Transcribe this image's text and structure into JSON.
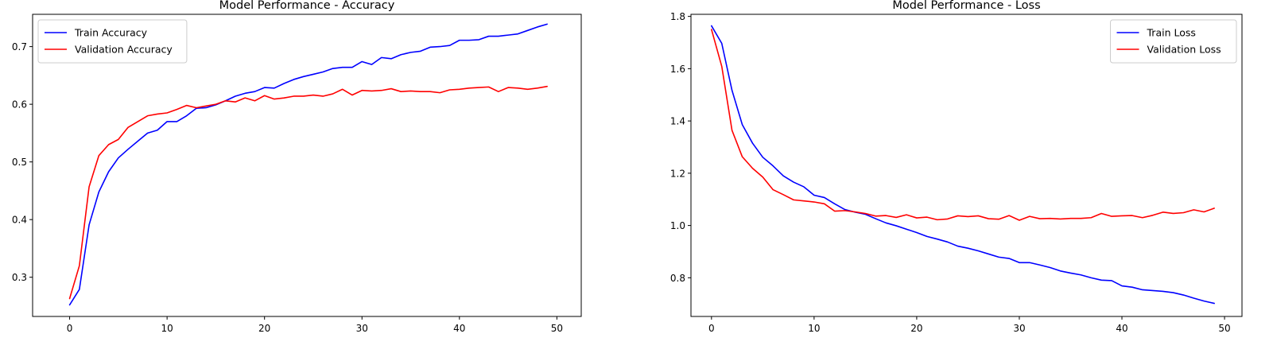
{
  "chart_data": [
    {
      "type": "line",
      "title": "Model Performance - Accuracy",
      "xlabel": "",
      "ylabel": "",
      "xlim": [
        -3.8,
        52.5
      ],
      "ylim": [
        0.232,
        0.756
      ],
      "xticks": [
        0,
        10,
        20,
        30,
        40,
        50
      ],
      "yticks": [
        0.3,
        0.4,
        0.5,
        0.6,
        0.7
      ],
      "ytick_labels": [
        "0.3",
        "0.4",
        "0.5",
        "0.6",
        "0.7"
      ],
      "grid": false,
      "legend_position": "top-left",
      "x": [
        0,
        1,
        2,
        3,
        4,
        5,
        6,
        7,
        8,
        9,
        10,
        11,
        12,
        13,
        14,
        15,
        16,
        17,
        18,
        19,
        20,
        21,
        22,
        23,
        24,
        25,
        26,
        27,
        28,
        29,
        30,
        31,
        32,
        33,
        34,
        35,
        36,
        37,
        38,
        39,
        40,
        41,
        42,
        43,
        44,
        45,
        46,
        47,
        48,
        49
      ],
      "series": [
        {
          "name": "Train Accuracy",
          "color": "#0000ff",
          "values": [
            0.252,
            0.279,
            0.391,
            0.448,
            0.483,
            0.507,
            0.522,
            0.536,
            0.55,
            0.555,
            0.57,
            0.57,
            0.58,
            0.593,
            0.594,
            0.599,
            0.606,
            0.614,
            0.619,
            0.622,
            0.629,
            0.628,
            0.636,
            0.643,
            0.648,
            0.652,
            0.656,
            0.662,
            0.664,
            0.664,
            0.674,
            0.669,
            0.681,
            0.679,
            0.686,
            0.69,
            0.692,
            0.699,
            0.7,
            0.702,
            0.711,
            0.711,
            0.712,
            0.718,
            0.718,
            0.72,
            0.722,
            0.728,
            0.734,
            0.739
          ]
        },
        {
          "name": "Validation Accuracy",
          "color": "#ff0000",
          "values": [
            0.263,
            0.32,
            0.457,
            0.511,
            0.53,
            0.539,
            0.56,
            0.57,
            0.58,
            0.583,
            0.585,
            0.591,
            0.598,
            0.594,
            0.597,
            0.6,
            0.606,
            0.604,
            0.611,
            0.606,
            0.615,
            0.609,
            0.611,
            0.614,
            0.614,
            0.616,
            0.614,
            0.618,
            0.626,
            0.616,
            0.624,
            0.623,
            0.624,
            0.627,
            0.622,
            0.623,
            0.622,
            0.622,
            0.62,
            0.625,
            0.626,
            0.628,
            0.629,
            0.63,
            0.622,
            0.629,
            0.628,
            0.626,
            0.628,
            0.631
          ]
        }
      ]
    },
    {
      "type": "line",
      "title": "Model Performance - Loss",
      "xlabel": "",
      "ylabel": "",
      "xlim": [
        -2.0,
        51.7
      ],
      "ylim": [
        0.652,
        1.808
      ],
      "xticks": [
        0,
        10,
        20,
        30,
        40,
        50
      ],
      "yticks": [
        0.8,
        1.0,
        1.2,
        1.4,
        1.6,
        1.8
      ],
      "ytick_labels": [
        "0.8",
        "1.0",
        "1.2",
        "1.4",
        "1.6",
        "1.8"
      ],
      "grid": false,
      "legend_position": "top-right",
      "x": [
        0,
        1,
        2,
        3,
        4,
        5,
        6,
        7,
        8,
        9,
        10,
        11,
        12,
        13,
        14,
        15,
        16,
        17,
        18,
        19,
        20,
        21,
        22,
        23,
        24,
        25,
        26,
        27,
        28,
        29,
        30,
        31,
        32,
        33,
        34,
        35,
        36,
        37,
        38,
        39,
        40,
        41,
        42,
        43,
        44,
        45,
        46,
        47,
        48,
        49
      ],
      "series": [
        {
          "name": "Train Loss",
          "color": "#0000ff",
          "values": [
            1.764,
            1.697,
            1.517,
            1.386,
            1.315,
            1.261,
            1.228,
            1.19,
            1.166,
            1.148,
            1.116,
            1.107,
            1.083,
            1.061,
            1.051,
            1.043,
            1.026,
            1.01,
            0.999,
            0.986,
            0.973,
            0.958,
            0.948,
            0.937,
            0.921,
            0.913,
            0.903,
            0.891,
            0.879,
            0.874,
            0.858,
            0.858,
            0.849,
            0.839,
            0.826,
            0.818,
            0.811,
            0.8,
            0.791,
            0.789,
            0.769,
            0.764,
            0.754,
            0.751,
            0.748,
            0.743,
            0.734,
            0.722,
            0.711,
            0.702
          ]
        },
        {
          "name": "Validation Loss",
          "color": "#ff0000",
          "values": [
            1.75,
            1.609,
            1.364,
            1.263,
            1.219,
            1.185,
            1.137,
            1.118,
            1.098,
            1.094,
            1.09,
            1.083,
            1.055,
            1.057,
            1.052,
            1.046,
            1.036,
            1.038,
            1.031,
            1.041,
            1.029,
            1.032,
            1.022,
            1.025,
            1.037,
            1.034,
            1.037,
            1.026,
            1.024,
            1.038,
            1.02,
            1.035,
            1.026,
            1.027,
            1.025,
            1.027,
            1.027,
            1.03,
            1.046,
            1.035,
            1.037,
            1.038,
            1.03,
            1.039,
            1.051,
            1.046,
            1.049,
            1.06,
            1.052,
            1.066
          ]
        }
      ]
    }
  ]
}
